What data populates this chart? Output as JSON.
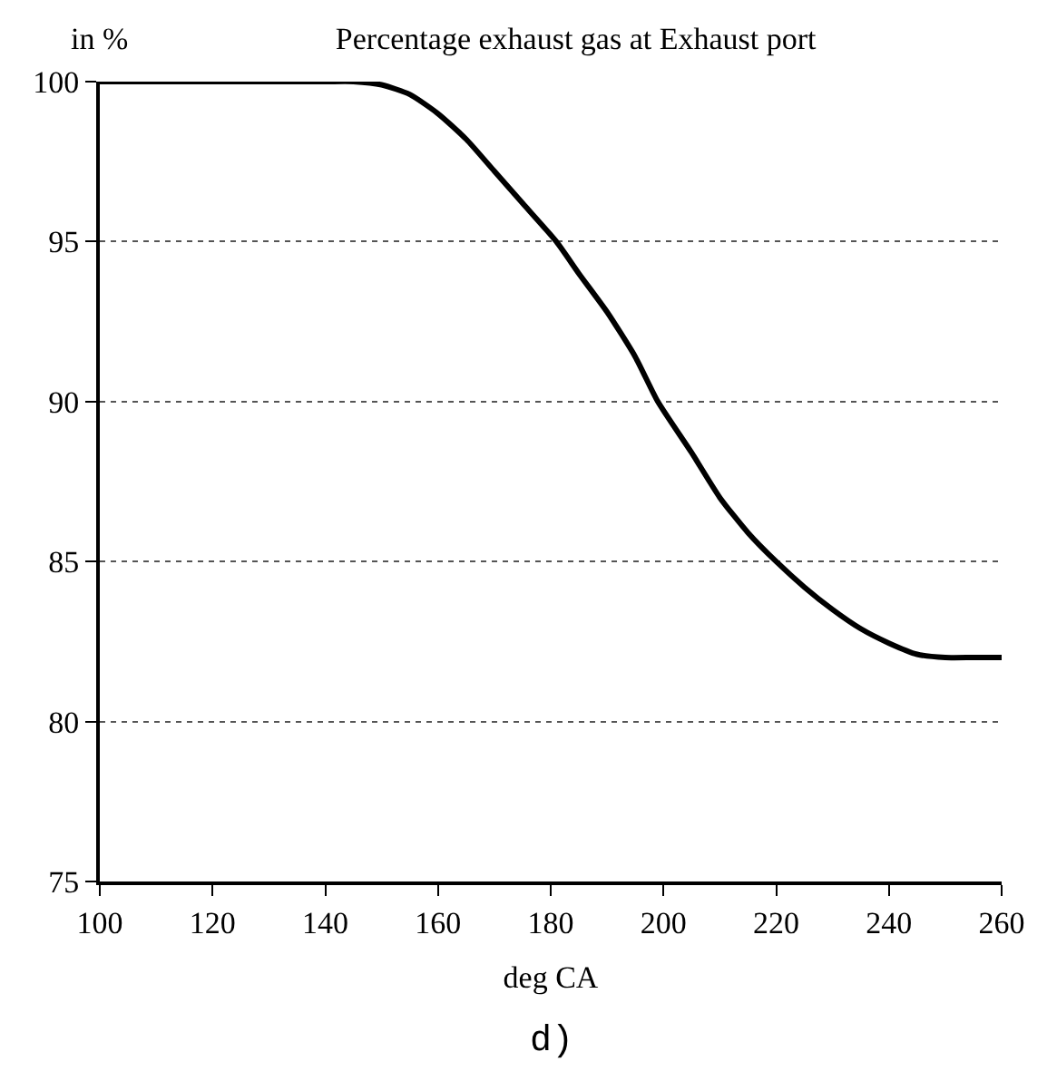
{
  "chart_data": {
    "type": "line",
    "title": "Percentage exhaust gas at Exhaust port",
    "xlabel": "deg CA",
    "ylabel": "in %",
    "annotations": [
      "d)"
    ],
    "x": [
      100,
      120,
      140,
      145,
      150,
      155,
      160,
      165,
      170,
      175,
      181,
      185,
      190,
      195,
      199,
      205,
      210,
      215,
      220,
      225,
      230,
      235,
      240,
      245,
      250,
      255,
      260
    ],
    "series": [
      {
        "color": "#000000",
        "values": [
          100,
          100,
          100,
          100,
          99.9,
          99.6,
          99.0,
          98.2,
          97.2,
          96.2,
          95,
          94.0,
          92.8,
          91.4,
          90,
          88.4,
          87.0,
          85.9,
          85.0,
          84.2,
          83.5,
          82.9,
          82.45,
          82.1,
          82.0,
          82.0,
          82.0
        ]
      }
    ],
    "xlim": [
      100,
      260
    ],
    "ylim": [
      75,
      100
    ],
    "xticks": [
      100,
      120,
      140,
      160,
      180,
      200,
      220,
      240,
      260
    ],
    "yticks": [
      75,
      80,
      85,
      90,
      95,
      100
    ],
    "grid": "y",
    "marker": "none",
    "line_style": "solid"
  }
}
